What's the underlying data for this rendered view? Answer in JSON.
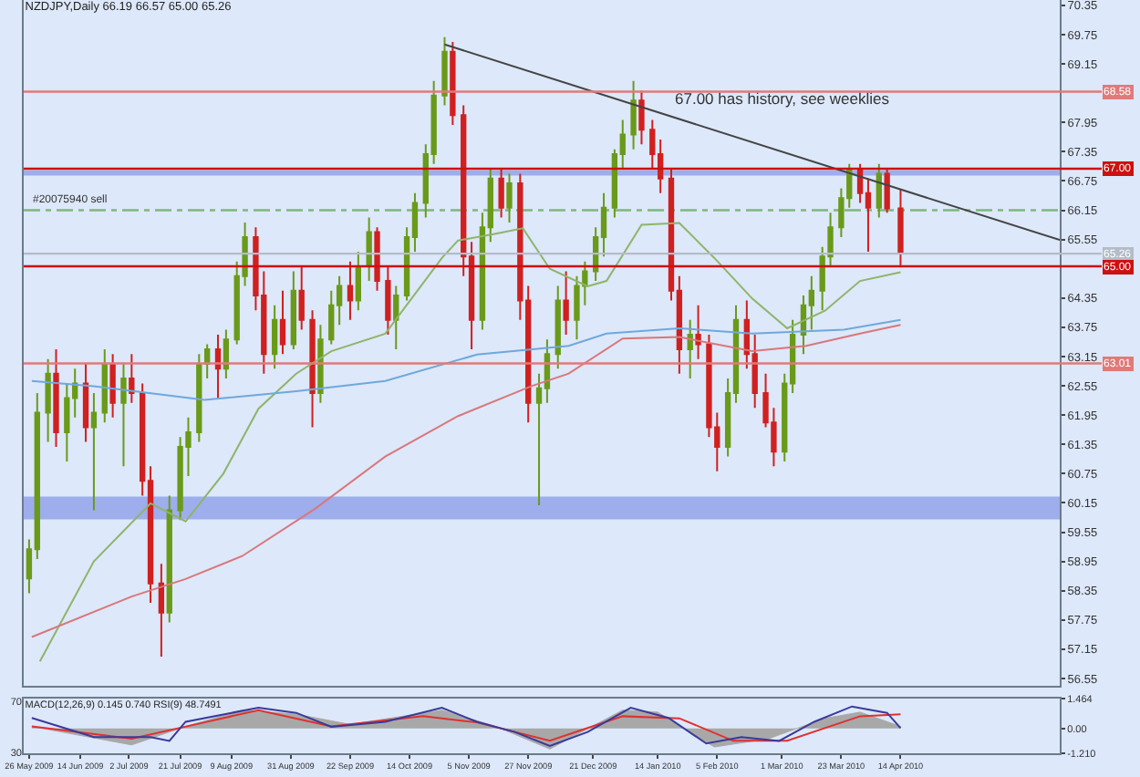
{
  "chart_data": [
    {
      "type": "candlestick",
      "title": "NZDJPY,Daily 66.19 66.57 65.00 65.26",
      "x": [
        "2009-05-26",
        "2009-05-29",
        "2009-06-02",
        "2009-06-05",
        "2009-06-09",
        "2009-06-12",
        "2009-06-16",
        "2009-06-19",
        "2009-06-23",
        "2009-06-26",
        "2009-06-30",
        "2009-07-03",
        "2009-07-07",
        "2009-07-10",
        "2009-07-14",
        "2009-07-17",
        "2009-07-21",
        "2009-07-24",
        "2009-07-28",
        "2009-07-31",
        "2009-08-04",
        "2009-08-07",
        "2009-08-11",
        "2009-08-14",
        "2009-08-18",
        "2009-08-21",
        "2009-08-25",
        "2009-08-28",
        "2009-09-01",
        "2009-09-04",
        "2009-09-08",
        "2009-09-11",
        "2009-09-15",
        "2009-09-18",
        "2009-09-22",
        "2009-09-25",
        "2009-09-29",
        "2009-10-02",
        "2009-10-06",
        "2009-10-09",
        "2009-10-13",
        "2009-10-16",
        "2009-10-20",
        "2009-10-23",
        "2009-10-27",
        "2009-10-30",
        "2009-11-03",
        "2009-11-06",
        "2009-11-10",
        "2009-11-13",
        "2009-11-17",
        "2009-11-20",
        "2009-11-24",
        "2009-11-27",
        "2009-12-01",
        "2009-12-04",
        "2009-12-08",
        "2009-12-11",
        "2009-12-15",
        "2009-12-18",
        "2009-12-22",
        "2009-12-25",
        "2009-12-29",
        "2010-01-01",
        "2010-01-05",
        "2010-01-08",
        "2010-01-12",
        "2010-01-15",
        "2010-01-19",
        "2010-01-22",
        "2010-01-26",
        "2010-01-29",
        "2010-02-02",
        "2010-02-05",
        "2010-02-09",
        "2010-02-12",
        "2010-02-16",
        "2010-02-19",
        "2010-02-23",
        "2010-02-26",
        "2010-03-02",
        "2010-03-05",
        "2010-03-09",
        "2010-03-12",
        "2010-03-16",
        "2010-03-19",
        "2010-03-23",
        "2010-03-26",
        "2010-03-30",
        "2010-04-02",
        "2010-04-06",
        "2010-04-09",
        "2010-04-14"
      ],
      "ohlc": [
        [
          58.6,
          59.4,
          58.3,
          59.2
        ],
        [
          59.2,
          62.4,
          59.0,
          62.0
        ],
        [
          62.0,
          63.1,
          61.4,
          62.8
        ],
        [
          62.8,
          63.3,
          61.3,
          61.6
        ],
        [
          61.6,
          62.6,
          61.0,
          62.3
        ],
        [
          62.3,
          62.9,
          61.9,
          62.6
        ],
        [
          62.6,
          63.0,
          61.4,
          61.7
        ],
        [
          61.7,
          62.4,
          60.0,
          62.0
        ],
        [
          62.0,
          63.3,
          61.8,
          63.0
        ],
        [
          63.0,
          63.2,
          61.9,
          62.2
        ],
        [
          62.2,
          63.0,
          60.9,
          62.7
        ],
        [
          62.7,
          63.2,
          62.2,
          62.4
        ],
        [
          62.4,
          62.6,
          60.3,
          60.6
        ],
        [
          60.6,
          60.9,
          58.1,
          58.5
        ],
        [
          58.5,
          58.9,
          57.0,
          57.9
        ],
        [
          57.9,
          60.3,
          57.7,
          60.0
        ],
        [
          60.0,
          61.5,
          59.8,
          61.3
        ],
        [
          61.3,
          61.9,
          60.7,
          61.6
        ],
        [
          61.6,
          63.2,
          61.4,
          63.0
        ],
        [
          63.0,
          63.4,
          62.7,
          63.3
        ],
        [
          63.3,
          63.6,
          62.3,
          62.9
        ],
        [
          62.9,
          63.7,
          62.7,
          63.5
        ],
        [
          63.5,
          65.1,
          63.4,
          64.8
        ],
        [
          64.8,
          65.9,
          64.6,
          65.6
        ],
        [
          65.6,
          65.8,
          64.1,
          64.4
        ],
        [
          64.4,
          64.9,
          62.8,
          63.2
        ],
        [
          63.2,
          64.2,
          62.9,
          63.9
        ],
        [
          63.9,
          64.5,
          63.2,
          63.4
        ],
        [
          63.4,
          64.9,
          63.3,
          64.5
        ],
        [
          64.5,
          65.0,
          63.7,
          63.9
        ],
        [
          63.9,
          64.1,
          61.7,
          62.4
        ],
        [
          62.4,
          63.8,
          62.2,
          63.5
        ],
        [
          63.5,
          64.5,
          63.4,
          64.2
        ],
        [
          64.2,
          64.8,
          63.8,
          64.6
        ],
        [
          64.6,
          65.1,
          63.9,
          64.3
        ],
        [
          64.3,
          65.3,
          64.1,
          65.0
        ],
        [
          65.0,
          66.0,
          64.7,
          65.7
        ],
        [
          65.7,
          65.8,
          64.5,
          64.7
        ],
        [
          64.7,
          65.0,
          63.6,
          63.9
        ],
        [
          63.9,
          64.6,
          63.3,
          64.4
        ],
        [
          64.4,
          65.8,
          64.3,
          65.6
        ],
        [
          65.6,
          66.5,
          65.3,
          66.3
        ],
        [
          66.3,
          67.5,
          66.0,
          67.3
        ],
        [
          67.3,
          68.8,
          67.1,
          68.5
        ],
        [
          68.5,
          69.7,
          68.3,
          69.4
        ],
        [
          69.4,
          69.6,
          67.9,
          68.1
        ],
        [
          68.1,
          68.3,
          64.8,
          65.2
        ],
        [
          65.2,
          65.5,
          63.3,
          63.9
        ],
        [
          63.9,
          66.1,
          63.7,
          65.8
        ],
        [
          65.8,
          67.0,
          65.5,
          66.8
        ],
        [
          66.8,
          67.0,
          66.0,
          66.2
        ],
        [
          66.2,
          66.9,
          65.9,
          66.7
        ],
        [
          66.7,
          66.9,
          63.9,
          64.3
        ],
        [
          64.3,
          64.6,
          61.8,
          62.2
        ],
        [
          62.2,
          62.8,
          60.1,
          62.5
        ],
        [
          62.5,
          63.5,
          62.2,
          63.2
        ],
        [
          63.2,
          64.6,
          62.9,
          64.3
        ],
        [
          64.3,
          64.9,
          63.6,
          63.9
        ],
        [
          63.9,
          64.8,
          63.5,
          64.6
        ],
        [
          64.6,
          65.1,
          64.2,
          64.9
        ],
        [
          64.9,
          65.8,
          64.7,
          65.6
        ],
        [
          65.6,
          66.5,
          65.2,
          66.2
        ],
        [
          66.2,
          67.4,
          66.0,
          67.3
        ],
        [
          67.3,
          68.0,
          67.0,
          67.7
        ],
        [
          67.7,
          68.8,
          67.4,
          68.4
        ],
        [
          68.4,
          68.6,
          67.5,
          67.8
        ],
        [
          67.8,
          68.0,
          67.0,
          67.3
        ],
        [
          67.3,
          67.6,
          66.5,
          66.8
        ],
        [
          66.8,
          67.0,
          64.3,
          64.5
        ],
        [
          64.5,
          64.8,
          62.8,
          63.3
        ],
        [
          63.3,
          63.9,
          62.7,
          63.6
        ],
        [
          63.6,
          64.2,
          63.1,
          63.4
        ],
        [
          63.4,
          63.6,
          61.5,
          61.7
        ],
        [
          61.7,
          62.0,
          60.8,
          61.3
        ],
        [
          61.3,
          62.7,
          61.1,
          62.4
        ],
        [
          62.4,
          64.2,
          62.2,
          63.9
        ],
        [
          63.9,
          64.3,
          62.9,
          63.2
        ],
        [
          63.2,
          63.6,
          62.1,
          62.4
        ],
        [
          62.4,
          62.8,
          61.7,
          61.8
        ],
        [
          61.8,
          62.1,
          60.9,
          61.2
        ],
        [
          61.2,
          62.8,
          61.0,
          62.6
        ],
        [
          62.6,
          63.9,
          62.4,
          63.6
        ],
        [
          63.6,
          64.4,
          63.2,
          64.2
        ],
        [
          64.2,
          64.8,
          63.7,
          64.5
        ],
        [
          64.5,
          65.4,
          64.1,
          65.2
        ],
        [
          65.2,
          66.1,
          65.0,
          65.8
        ],
        [
          65.8,
          66.6,
          65.6,
          66.4
        ],
        [
          66.4,
          67.1,
          66.2,
          67.0
        ],
        [
          67.0,
          67.1,
          66.3,
          66.5
        ],
        [
          66.5,
          66.8,
          65.3,
          66.2
        ],
        [
          66.2,
          67.1,
          66.0,
          66.9
        ],
        [
          66.9,
          67.0,
          66.1,
          66.19
        ],
        [
          66.19,
          66.57,
          65.0,
          65.26
        ]
      ],
      "series": [
        {
          "type": "line",
          "color": "#8fb46a",
          "x": [
            "2009-05-30",
            "2009-06-19",
            "2009-07-10",
            "2009-07-23",
            "2009-08-06",
            "2009-08-19",
            "2009-09-02",
            "2009-09-15",
            "2009-10-05",
            "2009-10-26",
            "2009-11-01",
            "2009-11-15",
            "2009-11-25",
            "2009-12-05",
            "2009-12-19",
            "2009-12-26",
            "2010-01-08",
            "2010-01-22",
            "2010-02-04",
            "2010-02-18",
            "2010-03-03",
            "2010-03-17",
            "2010-03-30",
            "2010-04-14"
          ],
          "values": [
            56.9,
            58.95,
            60.14,
            59.77,
            60.75,
            62.08,
            62.8,
            63.26,
            63.62,
            65.17,
            65.53,
            65.67,
            65.78,
            64.95,
            64.59,
            64.7,
            65.85,
            65.89,
            65.17,
            64.34,
            63.73,
            64.09,
            64.7,
            64.88
          ]
        },
        {
          "type": "line",
          "color": "#6fa8dc",
          "x": [
            "2009-05-27",
            "2009-06-19",
            "2009-07-30",
            "2009-09-02",
            "2009-10-05",
            "2009-11-08",
            "2009-12-12",
            "2009-12-26",
            "2010-01-22",
            "2010-02-18",
            "2010-03-24",
            "2010-04-14"
          ],
          "values": [
            62.65,
            62.54,
            62.26,
            62.44,
            62.65,
            63.19,
            63.37,
            63.62,
            63.73,
            63.62,
            63.7,
            63.9
          ]
        },
        {
          "type": "line",
          "color": "#d9777a",
          "x": [
            "2009-05-27",
            "2009-07-03",
            "2009-07-23",
            "2009-08-13",
            "2009-09-09",
            "2009-10-05",
            "2009-11-01",
            "2009-11-28",
            "2009-12-12",
            "2010-01-01",
            "2010-01-22",
            "2010-02-18",
            "2010-03-10",
            "2010-03-30",
            "2010-04-14"
          ],
          "values": [
            57.4,
            58.23,
            58.59,
            59.06,
            60.03,
            61.1,
            61.93,
            62.54,
            62.8,
            63.52,
            63.55,
            63.26,
            63.37,
            63.62,
            63.8
          ]
        },
        {
          "type": "line",
          "color": "#444444",
          "x": [
            "2009-10-27",
            "2010-06-12"
          ],
          "values": [
            69.55,
            65.54
          ]
        }
      ],
      "xlim": [
        "2009-05-24",
        "2010-06-12"
      ],
      "ylim": [
        56.4,
        70.46
      ],
      "yticks": [
        70.35,
        69.75,
        69.15,
        67.95,
        67.35,
        66.75,
        66.15,
        65.55,
        64.35,
        63.75,
        63.15,
        62.55,
        61.95,
        61.35,
        60.75,
        60.15,
        59.55,
        58.95,
        58.35,
        57.75,
        57.15,
        56.55
      ],
      "tick_labels": "y",
      "grid": false,
      "ref_lines": [
        {
          "axis": "y",
          "value": 68.58,
          "label": "68.58",
          "color": "#e07a7a"
        },
        {
          "axis": "y",
          "value": 67.0,
          "label": "67.00",
          "color": "#cc1111"
        },
        {
          "axis": "y",
          "value": 66.15,
          "label": "#20075940 sell",
          "color": "#7fb77f",
          "line_style": "dashed"
        },
        {
          "axis": "y",
          "value": 65.26,
          "label": "65.26",
          "color": "#b4bcc8"
        },
        {
          "axis": "y",
          "value": 65.0,
          "label": "65.00",
          "color": "#cc1111"
        },
        {
          "axis": "y",
          "value": 63.01,
          "label": "63.01",
          "color": "#e07a7a"
        }
      ],
      "bands": [
        {
          "axis": "y",
          "from": 66.86,
          "to": 66.97,
          "color": "#8e9de8"
        },
        {
          "axis": "y",
          "from": 59.81,
          "to": 60.28,
          "color": "#8e9de8"
        }
      ],
      "annotations": [
        "67.00 has history, see weeklies"
      ]
    },
    {
      "type": "line",
      "title": "MACD(12,26,9) 0.145 0.740 RSI(9) 48.7491",
      "series": [
        {
          "type": "area",
          "color": "#a8a8a8",
          "x": [
            "2009-05-27",
            "2009-07-03",
            "2009-07-23",
            "2009-08-13",
            "2009-09-02",
            "2009-09-22",
            "2009-10-26",
            "2009-11-15",
            "2009-12-05",
            "2010-01-01",
            "2010-01-14",
            "2010-02-04",
            "2010-02-24",
            "2010-03-17",
            "2010-03-30",
            "2010-04-14"
          ],
          "values": [
            0.1,
            -0.8,
            0.1,
            0.9,
            0.7,
            0.2,
            0.9,
            0.1,
            -1.0,
            0.9,
            0.8,
            -0.9,
            -0.5,
            0.5,
            0.8,
            0.1
          ]
        },
        {
          "type": "line",
          "color": "#e03030",
          "x": [
            "2009-05-27",
            "2009-07-03",
            "2009-07-30",
            "2009-08-19",
            "2009-09-15",
            "2009-10-19",
            "2009-11-08",
            "2009-12-05",
            "2010-01-01",
            "2010-01-22",
            "2010-02-11",
            "2010-03-03",
            "2010-03-30",
            "2010-04-14"
          ],
          "values": [
            0.1,
            -0.5,
            0.3,
            0.9,
            0.1,
            0.6,
            0.3,
            -0.6,
            0.6,
            0.5,
            -0.6,
            -0.6,
            0.6,
            0.7
          ]
        },
        {
          "type": "line",
          "color": "#3a3a9a",
          "axis": "y2",
          "x": [
            "2009-05-27",
            "2009-06-19",
            "2009-07-10",
            "2009-07-17",
            "2009-07-23",
            "2009-08-09",
            "2009-08-19",
            "2009-09-02",
            "2009-09-15",
            "2009-10-05",
            "2009-10-26",
            "2009-11-08",
            "2009-11-22",
            "2009-12-05",
            "2009-12-19",
            "2010-01-04",
            "2010-01-18",
            "2010-02-01",
            "2010-02-14",
            "2010-02-28",
            "2010-03-13",
            "2010-03-27",
            "2010-04-09",
            "2010-04-14"
          ],
          "values": [
            57,
            42,
            42,
            39,
            54,
            61,
            65,
            61,
            50,
            54,
            65,
            54,
            46,
            35,
            46,
            65,
            57,
            37,
            42,
            39,
            54,
            66,
            61,
            49
          ]
        }
      ],
      "xlim": [
        "2009-05-24",
        "2010-06-12"
      ],
      "xticks": [
        {
          "value": "2009-05-26",
          "label": "26 May 2009"
        },
        {
          "value": "2009-06-14",
          "label": "14 Jun 2009"
        },
        {
          "value": "2009-07-02",
          "label": "2 Jul 2009"
        },
        {
          "value": "2009-07-21",
          "label": "21 Jul 2009"
        },
        {
          "value": "2009-08-09",
          "label": "9 Aug 2009"
        },
        {
          "value": "2009-08-31",
          "label": "31 Aug 2009"
        },
        {
          "value": "2009-09-22",
          "label": "22 Sep 2009"
        },
        {
          "value": "2009-10-14",
          "label": "14 Oct 2009"
        },
        {
          "value": "2009-11-05",
          "label": "5 Nov 2009"
        },
        {
          "value": "2009-11-27",
          "label": "27 Nov 2009"
        },
        {
          "value": "2009-12-21",
          "label": "21 Dec 2009"
        },
        {
          "value": "2010-01-14",
          "label": "14 Jan 2010"
        },
        {
          "value": "2010-02-05",
          "label": "5 Feb 2010"
        },
        {
          "value": "2010-03-01",
          "label": "1 Mar 2010"
        },
        {
          "value": "2010-03-23",
          "label": "23 Mar 2010"
        },
        {
          "value": "2010-04-14",
          "label": "14 Apr 2010"
        }
      ],
      "ylim": [
        -1.21,
        1.464
      ],
      "yticks": [
        1.464,
        {
          "value": 0,
          "label": "0.00"
        },
        {
          "value": -1.21,
          "label": "-1.210"
        }
      ],
      "y2lim": [
        29.3,
        72.2
      ],
      "y2ticks": [
        70,
        30
      ],
      "grid": false
    }
  ]
}
